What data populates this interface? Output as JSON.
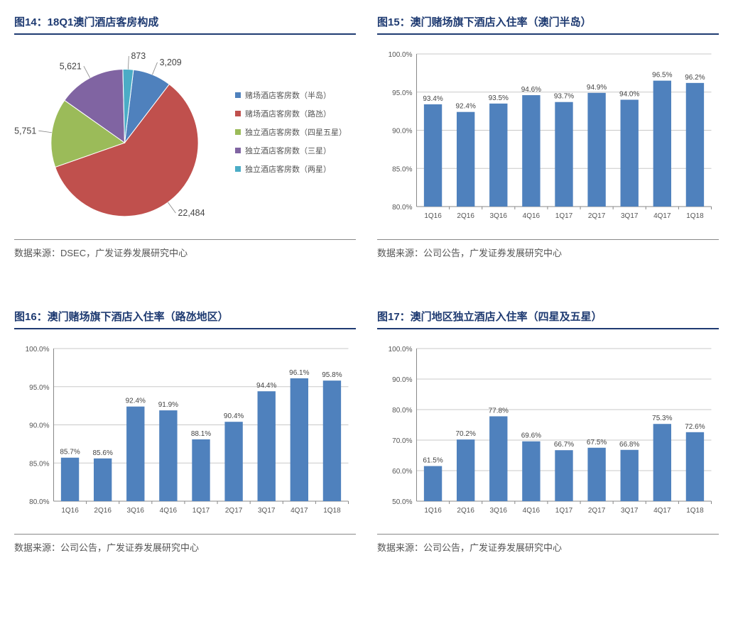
{
  "panels": {
    "pie": {
      "title": "图14：18Q1澳门酒店客房构成",
      "source": "数据来源：DSEC，广发证券发展研究中心",
      "slices": [
        {
          "label": "赌场酒店客房数（半岛）",
          "value": 3209,
          "display": "3,209",
          "color": "#4f81bd"
        },
        {
          "label": "赌场酒店客房数（路氹）",
          "value": 22484,
          "display": "22,484",
          "color": "#c0504d"
        },
        {
          "label": "独立酒店客房数（四星五星）",
          "value": 5751,
          "display": "5,751",
          "color": "#9bbb59"
        },
        {
          "label": "独立酒店客房数（三星）",
          "value": 5621,
          "display": "5,621",
          "color": "#8064a2"
        },
        {
          "label": "独立酒店客房数（两星）",
          "value": 873,
          "display": "873",
          "color": "#4bacc6"
        }
      ]
    },
    "bar1": {
      "title": "图15：澳门赌场旗下酒店入住率（澳门半岛）",
      "source": "数据来源：公司公告，广发证券发展研究中心",
      "categories": [
        "1Q16",
        "2Q16",
        "3Q16",
        "4Q16",
        "1Q17",
        "2Q17",
        "3Q17",
        "4Q17",
        "1Q18"
      ],
      "values": [
        93.4,
        92.4,
        93.5,
        94.6,
        93.7,
        94.9,
        94.0,
        96.5,
        96.2
      ],
      "ymin": 80,
      "ymax": 100,
      "ystep": 5,
      "bar_color": "#4f81bd",
      "grid_color": "#c9c9c9",
      "axis_color": "#888888",
      "label_fontsize": 10,
      "value_fontsize": 10
    },
    "bar2": {
      "title": "图16：澳门赌场旗下酒店入住率（路氹地区）",
      "source": "数据来源：公司公告，广发证券发展研究中心",
      "categories": [
        "1Q16",
        "2Q16",
        "3Q16",
        "4Q16",
        "1Q17",
        "2Q17",
        "3Q17",
        "4Q17",
        "1Q18"
      ],
      "values": [
        85.7,
        85.6,
        92.4,
        91.9,
        88.1,
        90.4,
        94.4,
        96.1,
        95.8
      ],
      "ymin": 80,
      "ymax": 100,
      "ystep": 5,
      "bar_color": "#4f81bd",
      "grid_color": "#c9c9c9",
      "axis_color": "#888888",
      "label_fontsize": 10,
      "value_fontsize": 10
    },
    "bar3": {
      "title": "图17：澳门地区独立酒店入住率（四星及五星）",
      "source": "数据来源：公司公告，广发证券发展研究中心",
      "categories": [
        "1Q16",
        "2Q16",
        "3Q16",
        "4Q16",
        "1Q17",
        "2Q17",
        "3Q17",
        "4Q17",
        "1Q18"
      ],
      "values": [
        61.5,
        70.2,
        77.8,
        69.6,
        66.7,
        67.5,
        66.8,
        75.3,
        72.6
      ],
      "ymin": 50,
      "ymax": 100,
      "ystep": 10,
      "bar_color": "#4f81bd",
      "grid_color": "#c9c9c9",
      "axis_color": "#888888",
      "label_fontsize": 10,
      "value_fontsize": 10
    }
  }
}
